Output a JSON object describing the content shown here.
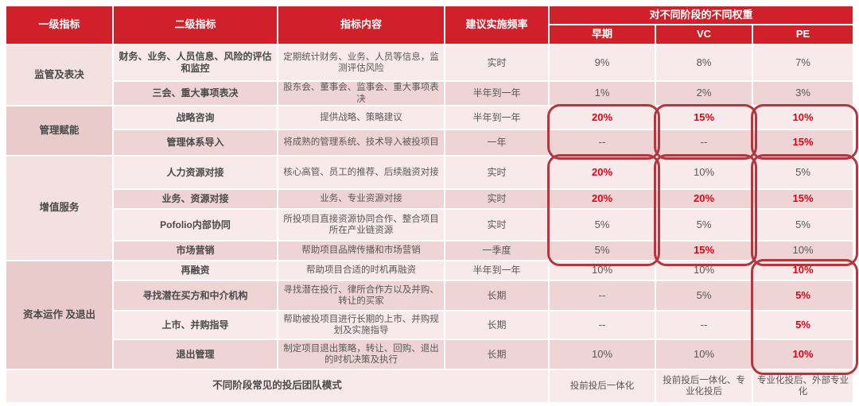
{
  "colors": {
    "header_bg": "#d0202a",
    "highlight_red": "#e60014",
    "outline_red": "#b2373e",
    "row_light": "#f8eaea",
    "row_dark": "#eed4d4",
    "group_light": "#f3e0e0",
    "group_dark": "#e9cbcb",
    "text_gray": "#5a5757"
  },
  "table": {
    "headers": {
      "col1": "一级指标",
      "col2": "二级指标",
      "col3": "指标内容",
      "col4": "建议实施频率",
      "weights_group": "对不同阶段的不同权重",
      "stage_early": "早期",
      "stage_vc": "VC",
      "stage_pe": "PE"
    },
    "groups": [
      {
        "label": "监管及表决"
      },
      {
        "label": "管理赋能"
      },
      {
        "label": "增值服务"
      },
      {
        "label": "资本运作\n及退出"
      }
    ],
    "rows": [
      {
        "indicator": "财务、业务、人员信息、风险的评估和监控",
        "content": "定期统计财务、业务、人员等信息，监测评估风险",
        "frequency": "实时",
        "early": "9%",
        "vc": "8%",
        "pe": "7%",
        "hl": {
          "early": false,
          "vc": false,
          "pe": false
        }
      },
      {
        "indicator": "三会、重大事项表决",
        "content": "股东会、董事会、监事会、重大事项表决",
        "frequency": "半年到一年",
        "early": "1%",
        "vc": "2%",
        "pe": "3%",
        "hl": {
          "early": false,
          "vc": false,
          "pe": false
        }
      },
      {
        "indicator": "战略咨询",
        "content": "提供战略、策略建议",
        "frequency": "半年到一年",
        "early": "20%",
        "vc": "15%",
        "pe": "10%",
        "hl": {
          "early": true,
          "vc": true,
          "pe": true
        }
      },
      {
        "indicator": "管理体系导入",
        "content": "将成熟的管理系统、技术导入被投项目",
        "frequency": "一年",
        "early": "--",
        "vc": "--",
        "pe": "15%",
        "hl": {
          "early": false,
          "vc": false,
          "pe": true
        }
      },
      {
        "indicator": "人力资源对接",
        "content": "核心高管、员工的推荐、后续融资对接",
        "frequency": "实时",
        "early": "20%",
        "vc": "10%",
        "pe": "5%",
        "hl": {
          "early": true,
          "vc": false,
          "pe": false
        }
      },
      {
        "indicator": "业务、资源对接",
        "content": "业务、专业资源对接",
        "frequency": "实时",
        "early": "20%",
        "vc": "20%",
        "pe": "15%",
        "hl": {
          "early": true,
          "vc": true,
          "pe": true
        }
      },
      {
        "indicator": "Pofolio内部协同",
        "content": "所投项目直接资源协同合作、整合项目所在产业链资源",
        "frequency": "实时",
        "early": "5%",
        "vc": "5%",
        "pe": "5%",
        "hl": {
          "early": false,
          "vc": false,
          "pe": false
        }
      },
      {
        "indicator": "市场营销",
        "content": "帮助项目品牌传播和市场营销",
        "frequency": "一季度",
        "early": "5%",
        "vc": "15%",
        "pe": "10%",
        "hl": {
          "early": false,
          "vc": true,
          "pe": false
        }
      },
      {
        "indicator": "再融资",
        "content": "帮助项目合适的时机再融资",
        "frequency": "半年到一年",
        "early": "10%",
        "vc": "10%",
        "pe": "10%",
        "hl": {
          "early": false,
          "vc": false,
          "pe": true
        }
      },
      {
        "indicator": "寻找潜在买方和中介机构",
        "content": "寻找潜在投行、律所合作方以及并购、转让的买家",
        "frequency": "长期",
        "early": "--",
        "vc": "5%",
        "pe": "5%",
        "hl": {
          "early": false,
          "vc": false,
          "pe": true
        }
      },
      {
        "indicator": "上市、并购指导",
        "content": "帮助被投项目进行长期的上市、并购规划及实施指导",
        "frequency": "长期",
        "early": "--",
        "vc": "--",
        "pe": "5%",
        "hl": {
          "early": false,
          "vc": false,
          "pe": true
        }
      },
      {
        "indicator": "退出管理",
        "content": "制定项目退出策略，转让、回购、退出的时机决策及执行",
        "frequency": "长期",
        "early": "10%",
        "vc": "10%",
        "pe": "10%",
        "hl": {
          "early": false,
          "vc": false,
          "pe": true
        }
      }
    ],
    "footer": {
      "label": "不同阶段常见的投后团队模式",
      "early": "投前投后一体化",
      "vc": "投前投后一体化、专业化投后",
      "pe": "专业化投后、外部专业化"
    }
  }
}
